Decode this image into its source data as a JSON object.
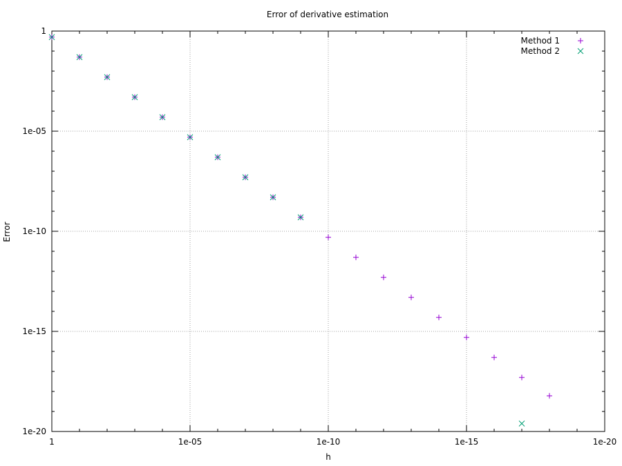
{
  "chart_data": {
    "type": "scatter",
    "title": "Error of derivative estimation",
    "xlabel": "h",
    "ylabel": "Error",
    "x_scale": "log",
    "y_scale": "log",
    "x_reversed": true,
    "xlim": [
      1,
      1e-20
    ],
    "ylim": [
      1e-20,
      1
    ],
    "grid": true,
    "legend_position": "top-right",
    "x_ticks": [
      {
        "value": 1,
        "label": "1"
      },
      {
        "value": 1e-05,
        "label": "1e-05"
      },
      {
        "value": 1e-10,
        "label": "1e-10"
      },
      {
        "value": 1e-15,
        "label": "1e-15"
      },
      {
        "value": 1e-20,
        "label": "1e-20"
      }
    ],
    "y_ticks": [
      {
        "value": 1,
        "label": "1"
      },
      {
        "value": 1e-05,
        "label": "1e-05"
      },
      {
        "value": 1e-10,
        "label": "1e-10"
      },
      {
        "value": 1e-15,
        "label": "1e-15"
      },
      {
        "value": 1e-20,
        "label": "1e-20"
      }
    ],
    "series": [
      {
        "name": "Method 1",
        "color": "#9400d3",
        "marker": "plus",
        "x": [
          1,
          0.1,
          0.01,
          0.001,
          0.0001,
          1e-05,
          1e-06,
          1e-07,
          1e-08,
          1e-09,
          1e-10,
          1e-11,
          1e-12,
          1e-13,
          1e-14,
          1e-15,
          1e-16,
          1e-17,
          1e-18
        ],
        "y": [
          0.5,
          0.05,
          0.005,
          0.0005,
          5e-05,
          5e-06,
          5e-07,
          5e-08,
          5e-09,
          5e-10,
          5e-11,
          5e-12,
          5e-13,
          5e-14,
          5e-15,
          5e-16,
          5e-17,
          5e-18,
          6e-19
        ]
      },
      {
        "name": "Method 2",
        "color": "#009e73",
        "marker": "cross",
        "x": [
          1,
          0.1,
          0.01,
          0.001,
          0.0001,
          1e-05,
          1e-06,
          1e-07,
          1e-08,
          1e-09,
          1e-17
        ],
        "y": [
          0.5,
          0.05,
          0.005,
          0.0005,
          5e-05,
          5e-06,
          5e-07,
          5e-08,
          5e-09,
          5e-10,
          2.5e-20
        ]
      }
    ]
  }
}
